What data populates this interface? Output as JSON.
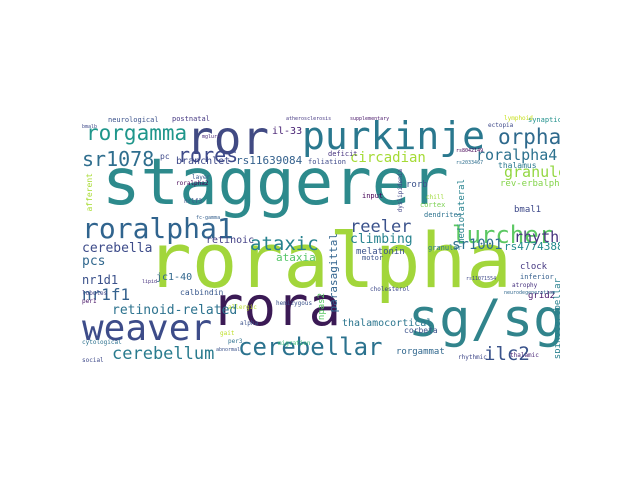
{
  "words": [
    {
      "text": "staggerer",
      "color": "#2d8a8c"
    },
    {
      "text": "roralpha",
      "color": "#a2d63b"
    },
    {
      "text": "rora",
      "color": "#3b1a55"
    },
    {
      "text": "sg/sg",
      "color": "#31848c"
    },
    {
      "text": "ror",
      "color": "#414a83"
    },
    {
      "text": "purkinje",
      "color": "#2a788e"
    },
    {
      "text": "weaver",
      "color": "#3d4c89"
    },
    {
      "text": "roralpha1",
      "color": "#30648e"
    },
    {
      "text": "cerebellar",
      "color": "#2b728e"
    },
    {
      "text": "lurcher",
      "color": "#5cc863"
    },
    {
      "text": "orphan",
      "color": "#2f6a8d"
    },
    {
      "text": "rorgamma",
      "color": "#1f968b"
    },
    {
      "text": "sr1078",
      "color": "#2f6e8e"
    },
    {
      "text": "rores",
      "color": "#3e4a89"
    },
    {
      "text": "ataxic",
      "color": "#26818e"
    },
    {
      "text": "cerebellum",
      "color": "#297b8e"
    },
    {
      "text": "nr1f1",
      "color": "#34618d"
    },
    {
      "text": "ilc2",
      "color": "#3a538b"
    },
    {
      "text": "reeler",
      "color": "#3b528b"
    },
    {
      "text": "rhythm",
      "color": "#46337e"
    },
    {
      "text": "roralpha4",
      "color": "#2c718e"
    },
    {
      "text": "granule",
      "color": "#93d741"
    },
    {
      "text": "sr1001",
      "color": "#2e6f8e"
    },
    {
      "text": "circadian",
      "color": "#a5db36"
    },
    {
      "text": "climbing",
      "color": "#26828e"
    },
    {
      "text": "cerebella",
      "color": "#3e4c8a"
    },
    {
      "text": "pcs",
      "color": "#31688e"
    },
    {
      "text": "rs4774388",
      "color": "#238a8d"
    },
    {
      "text": "retinoid-related",
      "color": "#2c728e"
    },
    {
      "text": "nr1d1",
      "color": "#3b518b"
    },
    {
      "text": "ataxia",
      "color": "#55c667"
    },
    {
      "text": "rs11639084",
      "color": "#34618d"
    },
    {
      "text": "branchlet",
      "color": "#3e4989"
    },
    {
      "text": "parasagittal",
      "color": "#32648e"
    },
    {
      "text": "thalamocortical",
      "color": "#2b758e"
    },
    {
      "text": "rorgammat",
      "color": "#31688e"
    },
    {
      "text": "retinoic",
      "color": "#423f85"
    },
    {
      "text": "melatonin",
      "color": "#3b528b"
    },
    {
      "text": "jc1-40",
      "color": "#31678e"
    },
    {
      "text": "rorb",
      "color": "#3b528b"
    },
    {
      "text": "npas2",
      "color": "#5ac864"
    },
    {
      "text": "mediolateral",
      "color": "#26828e"
    },
    {
      "text": "bmal1",
      "color": "#3e4989"
    },
    {
      "text": "clock",
      "color": "#453781"
    },
    {
      "text": "grid2",
      "color": "#48186a"
    },
    {
      "text": "rev-erbalpha",
      "color": "#84d44b"
    },
    {
      "text": "spinocerebellar",
      "color": "#27808e"
    },
    {
      "text": "il-33",
      "color": "#482374"
    },
    {
      "text": "thalamus",
      "color": "#2a788e"
    },
    {
      "text": "calbindin",
      "color": "#38588c"
    },
    {
      "text": "corbeta",
      "color": "#3b528b"
    },
    {
      "text": "neurological",
      "color": "#3b528b"
    },
    {
      "text": "postnatal",
      "color": "#453882"
    },
    {
      "text": "afferent",
      "color": "#a8db34"
    },
    {
      "text": "foliation",
      "color": "#3e4a89"
    },
    {
      "text": "input",
      "color": "#440154"
    },
    {
      "text": "inferior",
      "color": "#355f8d"
    },
    {
      "text": "dendrites",
      "color": "#2c728e"
    },
    {
      "text": "cortex",
      "color": "#7ad151"
    },
    {
      "text": "synaptic",
      "color": "#21918c"
    },
    {
      "text": "lymphoid",
      "color": "#c8e020"
    },
    {
      "text": "deficit",
      "color": "#46327e"
    },
    {
      "text": "granular",
      "color": "#2a768e"
    },
    {
      "text": "motor",
      "color": "#3b528b"
    },
    {
      "text": "chill",
      "color": "#9fda3a"
    },
    {
      "text": "per1",
      "color": "#481467"
    },
    {
      "text": "lobules",
      "color": "#414487"
    },
    {
      "text": "cytological",
      "color": "#2c718e"
    },
    {
      "text": "rhythmic",
      "color": "#3f4889"
    },
    {
      "text": "thalamic",
      "color": "#482475"
    },
    {
      "text": "social",
      "color": "#3e4989"
    },
    {
      "text": "per3",
      "color": "#2d708e"
    },
    {
      "text": "gait",
      "color": "#bddf26"
    },
    {
      "text": "alpha",
      "color": "#3b528b"
    },
    {
      "text": "layer",
      "color": "#38588c"
    },
    {
      "text": "migration",
      "color": "#38b977"
    },
    {
      "text": "ectopia",
      "color": "#3e4989"
    },
    {
      "text": "atrophy",
      "color": "#46307e"
    },
    {
      "text": "dyslipidemia",
      "color": "#414487"
    },
    {
      "text": "allergic",
      "color": "#bade28"
    },
    {
      "text": "hemizygous",
      "color": "#3b528b"
    },
    {
      "text": "roralpha2",
      "color": "#440154"
    },
    {
      "text": "nrlf3",
      "color": "#3b528b"
    },
    {
      "text": "cholesterol",
      "color": "#3e4989"
    },
    {
      "text": "mgluri",
      "color": "#482878"
    },
    {
      "text": "fc-gamma",
      "color": "#355f8d"
    },
    {
      "text": "atherosclerosis",
      "color": "#453882"
    },
    {
      "text": "supplementary",
      "color": "#481769"
    },
    {
      "text": "pc",
      "color": "#3e4989"
    },
    {
      "text": "lipid",
      "color": "#46307e"
    },
    {
      "text": "rs2033467",
      "color": "#2e6e8e"
    },
    {
      "text": "rs11071554",
      "color": "#3e4989"
    },
    {
      "text": "rs8042149",
      "color": "#440154"
    },
    {
      "text": "neurodegeneration",
      "color": "#31688e"
    },
    {
      "text": "bmalb",
      "color": "#3e4989"
    },
    {
      "text": "abnormal",
      "color": "#3b528b"
    }
  ]
}
